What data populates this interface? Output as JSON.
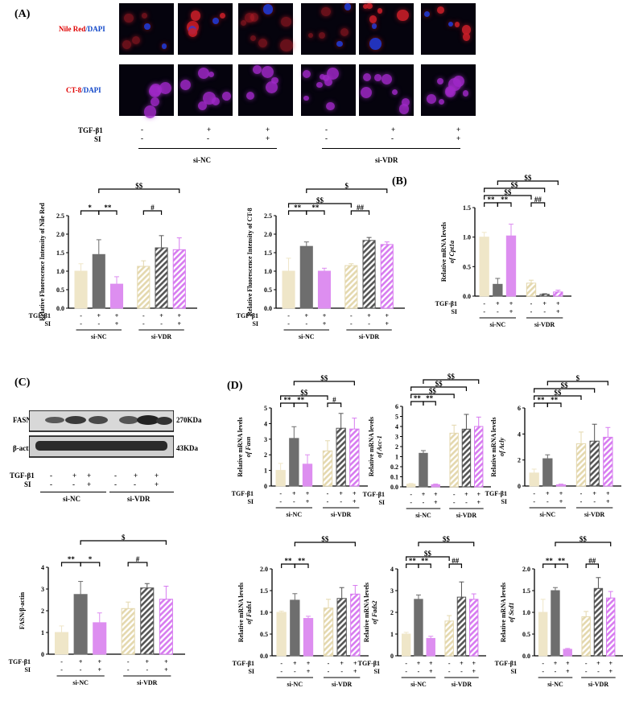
{
  "panel_labels": {
    "A": "(A)",
    "B": "(B)",
    "C": "(C)",
    "D": "(D)"
  },
  "microscopy": {
    "row1_label_red": "Nile Red",
    "row1_label_blue": "/DAPI",
    "row2_label_red": "CT-8",
    "row2_label_blue": "/DAPI",
    "tgf_label": "TGF-β1",
    "si_label": "SI",
    "tgf_signs": [
      "-",
      "+",
      "+",
      "-",
      "+",
      "+"
    ],
    "si_signs": [
      "-",
      "-",
      "+",
      "-",
      "-",
      "+"
    ],
    "group1": "si-NC",
    "group2": "si-VDR"
  },
  "western": {
    "fasn_label": "FASN",
    "fasn_kda": "270KDa",
    "actin_label": "β-actin",
    "actin_kda": "43KDa",
    "tgf_label": "TGF-β1",
    "si_label": "SI",
    "tgf_signs": [
      "-",
      "+",
      "+",
      "-",
      "+",
      "+"
    ],
    "si_signs": [
      "-",
      "-",
      "+",
      "-",
      "-",
      "+"
    ],
    "group1": "si-NC",
    "group2": "si-VDR"
  },
  "colors": {
    "ctrl": "#efe6c8",
    "tgf": "#6e6e6e",
    "tgf_si": "#dd8ef0",
    "ctrl_vdr_hatch": "#e4d8ae",
    "tgf_vdr_hatch": "#555555",
    "tgfsi_vdr_hatch": "#d77bf0"
  },
  "chart_data": [
    {
      "id": "nile",
      "type": "bar",
      "ylabel": "Relative Fluorescence Intensity of Nile Red",
      "ylim": [
        0,
        2.5
      ],
      "yticks": [
        "0.0",
        "0.5",
        "1.0",
        "1.5",
        "2.0",
        "2.5"
      ],
      "values": [
        1.0,
        1.45,
        0.65,
        1.13,
        1.63,
        1.58
      ],
      "errors": [
        0.2,
        0.4,
        0.2,
        0.15,
        0.33,
        0.32
      ],
      "tgf_signs": [
        "-",
        "+",
        "+",
        "-",
        "+",
        "+"
      ],
      "si_signs": [
        "-",
        "-",
        "+",
        "-",
        "-",
        "+"
      ],
      "group1": "si-NC",
      "group2": "si-VDR",
      "tgf_label": "TGF-β1",
      "si_label": "SI",
      "annotations": [
        "*",
        "**",
        "$$",
        "#"
      ]
    },
    {
      "id": "ct8",
      "type": "bar",
      "ylabel": "Relative Fluorescence Intensity of CT-8",
      "ylim": [
        0,
        2.5
      ],
      "yticks": [
        "0.0",
        "0.5",
        "1.0",
        "1.5",
        "2.0",
        "2.5"
      ],
      "values": [
        1.0,
        1.67,
        1.0,
        1.15,
        1.83,
        1.72
      ],
      "errors": [
        0.35,
        0.12,
        0.08,
        0.05,
        0.08,
        0.07
      ],
      "tgf_signs": [
        "-",
        "+",
        "+",
        "-",
        "+",
        "+"
      ],
      "si_signs": [
        "-",
        "-",
        "+",
        "-",
        "-",
        "+"
      ],
      "group1": "si-NC",
      "group2": "si-VDR",
      "tgf_label": "TGF-β1",
      "si_label": "SI",
      "annotations": [
        "**",
        "**",
        "$",
        "$$",
        "##"
      ]
    },
    {
      "id": "cpt1a",
      "type": "bar",
      "ylabel": "Relative mRNA levels",
      "ylabel_italic": "of Cpt1a",
      "ylim": [
        0,
        1.5
      ],
      "yticks": [
        "0.0",
        "0.5",
        "1.0",
        "1.5"
      ],
      "values": [
        1.0,
        0.2,
        1.02,
        0.22,
        0.03,
        0.07
      ],
      "errors": [
        0.08,
        0.1,
        0.2,
        0.05,
        0.01,
        0.03
      ],
      "tgf_signs": [
        "-",
        "+",
        "+",
        "-",
        "+",
        "+"
      ],
      "si_signs": [
        "-",
        "-",
        "+",
        "-",
        "-",
        "+"
      ],
      "group1": "si-NC",
      "group2": "si-VDR",
      "tgf_label": "TGF-β1",
      "si_label": "SI",
      "annotations": [
        "**",
        "**",
        "$$",
        "$$",
        "$$",
        "##"
      ]
    },
    {
      "id": "fasn_wb",
      "type": "bar",
      "ylabel": "FASN/β-actin",
      "ylim": [
        0,
        4
      ],
      "yticks": [
        "0",
        "1",
        "2",
        "3",
        "4"
      ],
      "values": [
        1.0,
        2.75,
        1.45,
        2.1,
        3.05,
        2.53
      ],
      "errors": [
        0.3,
        0.6,
        0.45,
        0.3,
        0.2,
        0.6
      ],
      "tgf_signs": [
        "-",
        "+",
        "+",
        "-",
        "+",
        "+"
      ],
      "si_signs": [
        "-",
        "-",
        "+",
        "-",
        "-",
        "+"
      ],
      "group1": "si-NC",
      "group2": "si-VDR",
      "tgf_label": "TGF-β1",
      "si_label": "SI",
      "annotations": [
        "**",
        "*",
        "$",
        "#"
      ]
    },
    {
      "id": "fasn",
      "type": "bar",
      "ylabel": "Relative mRNA levels",
      "ylabel_italic": "of Fasn",
      "ylim": [
        0,
        5
      ],
      "yticks": [
        "0",
        "1",
        "2",
        "3",
        "4",
        "5"
      ],
      "values": [
        1.0,
        3.05,
        1.4,
        2.25,
        3.7,
        3.65
      ],
      "errors": [
        0.45,
        0.75,
        0.6,
        0.65,
        0.95,
        0.7
      ],
      "tgf_signs": [
        "-",
        "+",
        "+",
        "-",
        "+",
        "+"
      ],
      "si_signs": [
        "-",
        "-",
        "+",
        "-",
        "-",
        "+"
      ],
      "group1": "si-NC",
      "group2": "si-VDR",
      "tgf_label": "TGF-β1",
      "si_label": "SI",
      "annotations": [
        "**",
        "**",
        "$$",
        "$$",
        "#"
      ]
    },
    {
      "id": "acc1",
      "type": "bar",
      "ylabel": "Relative mRNA levels",
      "ylabel_italic": "of Acc-1",
      "ylim": [
        0,
        6
      ],
      "yticks": [
        "0.0",
        "0.1",
        "0.2",
        "1",
        "2",
        "3",
        "4",
        "5",
        "6"
      ],
      "values": [
        0.2,
        2.5,
        0.16,
        4.0,
        4.3,
        4.5
      ],
      "errors": [
        0.05,
        0.2,
        0.05,
        0.6,
        1.1,
        0.7
      ],
      "tgf_signs": [
        "-",
        "+",
        "+",
        "-",
        "+",
        "+"
      ],
      "si_signs": [
        "-",
        "-",
        "+",
        "-",
        "-",
        "+"
      ],
      "group1": "si-NC",
      "group2": "si-VDR",
      "tgf_label": "TGF-β1",
      "si_label": "SI",
      "annotations": [
        "**",
        "**",
        "$$",
        "$$",
        "$$"
      ]
    },
    {
      "id": "acly",
      "type": "bar",
      "ylabel": "Relative mRNA levels",
      "ylabel_italic": "of Acly",
      "ylim": [
        0,
        6
      ],
      "yticks": [
        "0",
        "2",
        "4",
        "6"
      ],
      "values": [
        1.0,
        2.1,
        0.1,
        3.25,
        3.45,
        3.75
      ],
      "errors": [
        0.3,
        0.3,
        0.05,
        0.9,
        1.3,
        0.75
      ],
      "tgf_signs": [
        "-",
        "+",
        "+",
        "-",
        "+",
        "+"
      ],
      "si_signs": [
        "-",
        "-",
        "+",
        "-",
        "-",
        "+"
      ],
      "group1": "si-NC",
      "group2": "si-VDR",
      "tgf_label": "TGF-β1",
      "si_label": "SI",
      "annotations": [
        "**",
        "**",
        "$",
        "$$",
        "$$"
      ]
    },
    {
      "id": "fads1",
      "type": "bar",
      "ylabel": "Relative mRNA levels",
      "ylabel_italic": "of Fads1",
      "ylim": [
        0,
        2.0
      ],
      "yticks": [
        "0.0",
        "0.5",
        "1.0",
        "1.5",
        "2.0"
      ],
      "values": [
        1.0,
        1.28,
        0.86,
        1.1,
        1.32,
        1.42
      ],
      "errors": [
        0.03,
        0.15,
        0.05,
        0.2,
        0.25,
        0.2
      ],
      "tgf_signs": [
        "-",
        "+",
        "+",
        "-",
        "+",
        "+"
      ],
      "si_signs": [
        "-",
        "-",
        "+",
        "-",
        "-",
        "+"
      ],
      "group1": "si-NC",
      "group2": "si-VDR",
      "tgf_label": "TGF-β1",
      "si_label": "SI",
      "annotations": [
        "**",
        "**",
        "$$"
      ]
    },
    {
      "id": "fads2",
      "type": "bar",
      "ylabel": "Relative mRNA levels",
      "ylabel_italic": "of Fads2",
      "ylim": [
        0,
        4
      ],
      "yticks": [
        "0",
        "1",
        "2",
        "3",
        "4"
      ],
      "values": [
        1.0,
        2.6,
        0.8,
        1.6,
        2.7,
        2.6
      ],
      "errors": [
        0.08,
        0.2,
        0.1,
        0.25,
        0.7,
        0.25
      ],
      "tgf_signs": [
        "-",
        "+",
        "+",
        "-",
        "+",
        "+"
      ],
      "si_signs": [
        "-",
        "-",
        "+",
        "-",
        "-",
        "+"
      ],
      "group1": "si-NC",
      "group2": "si-VDR",
      "tgf_label": "TGF-β1",
      "si_label": "SI",
      "annotations": [
        "**",
        "**",
        "$$",
        "$$",
        "##"
      ]
    },
    {
      "id": "scd1",
      "type": "bar",
      "ylabel": "Relative mRNA levels",
      "ylabel_italic": "of Scd1",
      "ylim": [
        0,
        2.0
      ],
      "yticks": [
        "0.0",
        "0.5",
        "1.0",
        "1.5",
        "2.0"
      ],
      "values": [
        1.0,
        1.5,
        0.15,
        0.9,
        1.55,
        1.33
      ],
      "errors": [
        0.3,
        0.07,
        0.02,
        0.12,
        0.25,
        0.15
      ],
      "tgf_signs": [
        "-",
        "+",
        "+",
        "-",
        "+",
        "+"
      ],
      "si_signs": [
        "-",
        "-",
        "+",
        "-",
        "-",
        "+"
      ],
      "group1": "si-NC",
      "group2": "si-VDR",
      "tgf_label": "TGF-β1",
      "si_label": "SI",
      "annotations": [
        "**",
        "**",
        "$$",
        "##"
      ]
    }
  ]
}
